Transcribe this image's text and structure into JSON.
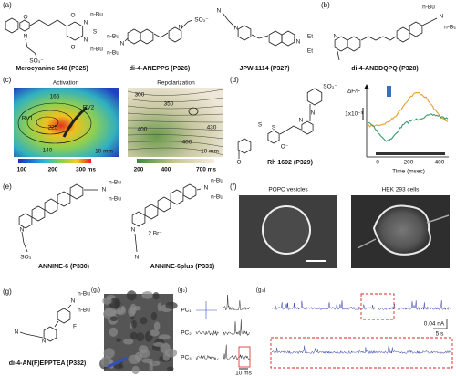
{
  "panels": {
    "a": {
      "label": "(a)",
      "compounds": [
        {
          "name": "Merocyanine 540 (P325)",
          "atoms": [
            "O",
            "N",
            "O",
            "N",
            "n-Bu",
            "S",
            "N",
            "n-Bu",
            "O",
            "SO₃⁻"
          ]
        },
        {
          "name": "di-4-ANEPPS (P326)",
          "atoms": [
            "n-Bu",
            "N",
            "n-Bu",
            "N",
            "SO₃⁻"
          ]
        },
        {
          "name": "JPW-1114 (P327)",
          "atoms": [
            "N",
            "N",
            "N",
            "Et",
            "Et"
          ]
        }
      ]
    },
    "b": {
      "label": "(b)",
      "compounds": [
        {
          "name": "di-4-ANBDQPQ (P328)",
          "atoms": [
            "N",
            "N",
            "n-Bu",
            "n-Bu"
          ]
        }
      ]
    },
    "c": {
      "label": "(c)",
      "activation": {
        "title": "Activation",
        "labels": [
          "165",
          "RV2",
          "RV1",
          "225",
          "140",
          "10 mm"
        ],
        "scale": [
          "100",
          "200",
          "300 ms"
        ]
      },
      "repolarization": {
        "title": "Repolarization",
        "labels": [
          "300",
          "350",
          "400",
          "430",
          "400",
          "10 mm"
        ],
        "scale": [
          "200",
          "400",
          "700 ms"
        ]
      }
    },
    "d": {
      "label": "(d)",
      "compounds": [
        {
          "name": "Rh 1692 (P329)",
          "atoms": [
            "SO₃⁻",
            "N",
            "N",
            "S",
            "S",
            "O⁻",
            "O"
          ]
        }
      ],
      "plot": {
        "ylabel": "ΔF/F",
        "scale": "1x10⁻³",
        "ticks": [
          "0",
          "200",
          "400"
        ],
        "xlabel": "Time (msec)"
      }
    },
    "e": {
      "label": "(e)",
      "compounds": [
        {
          "name": "ANNINE-6 (P330)",
          "atoms": [
            "N",
            "n-Bu",
            "n-Bu",
            "N",
            "SO₃⁻"
          ]
        },
        {
          "name": "ANNINE-6plus (P331)",
          "atoms": [
            "N",
            "n-Bu",
            "n-Bu",
            "N",
            "2 Br⁻",
            "N"
          ]
        }
      ]
    },
    "f": {
      "label": "(f)",
      "images": [
        "POPC vesicles",
        "HEK 293 cells"
      ]
    },
    "g": {
      "label": "(g)",
      "compounds": [
        {
          "name": "di-4-AN(F)EPPTEA (P332)",
          "atoms": [
            "N",
            "n-Bu",
            "n-Bu",
            "F",
            "N",
            "N"
          ]
        }
      ],
      "g1": "(g₁)",
      "g2": {
        "label": "(g₂)",
        "pcs": [
          "PC₁",
          "PC₂",
          "PC₃"
        ],
        "scale": "10 ms"
      },
      "g3": {
        "label": "(g₃)",
        "scale": [
          "0.04 nA",
          "5 s"
        ]
      }
    }
  }
}
